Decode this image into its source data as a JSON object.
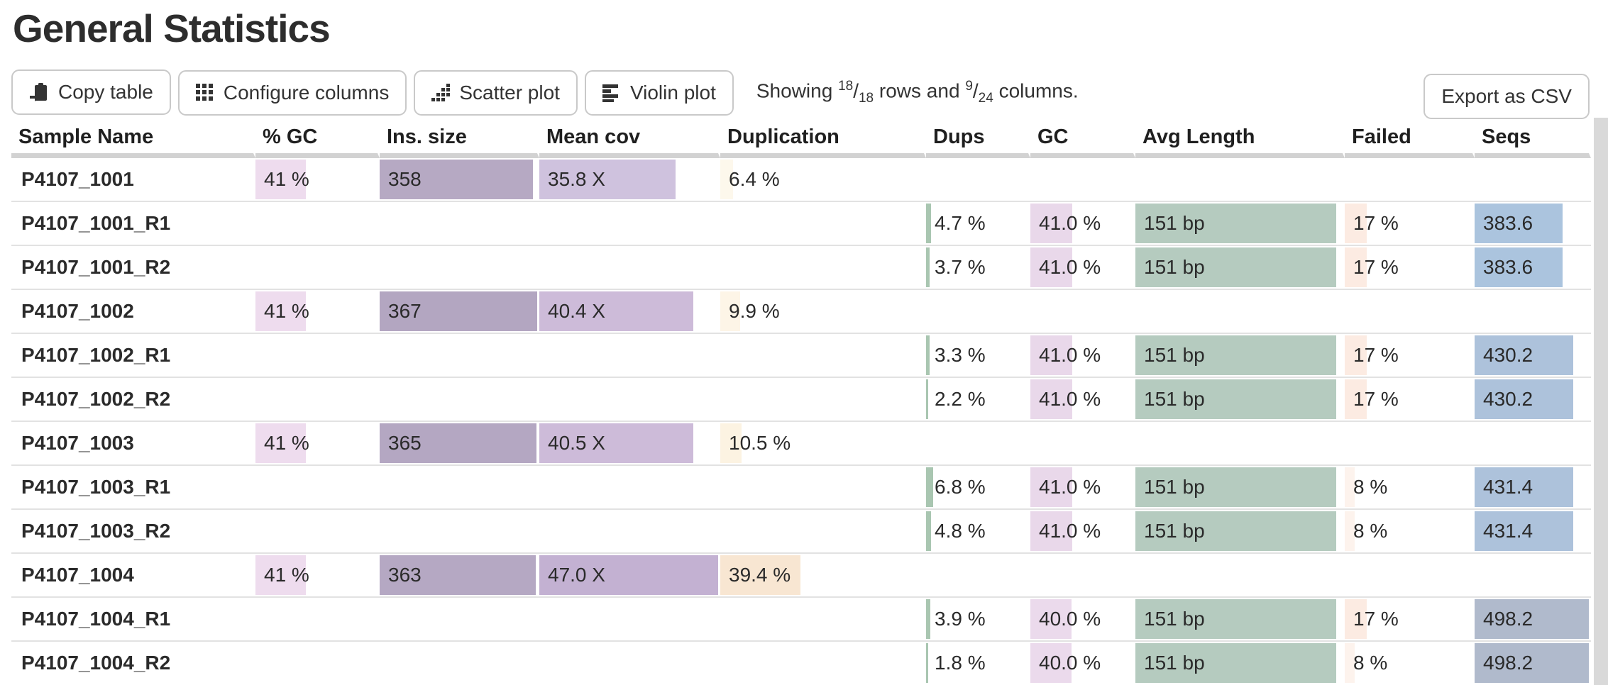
{
  "page": {
    "title": "General Statistics"
  },
  "toolbar": {
    "buttons": [
      {
        "label": "Copy table",
        "icon": "clipboard-icon"
      },
      {
        "label": "Configure columns",
        "icon": "grid-icon"
      },
      {
        "label": "Scatter plot",
        "icon": "scatter-icon"
      },
      {
        "label": "Violin plot",
        "icon": "violin-icon"
      }
    ],
    "showing": {
      "prefix": "Showing",
      "rows_visible": "18",
      "rows_total": "18",
      "mid": "rows and",
      "cols_visible": "9",
      "cols_total": "24",
      "suffix": "columns."
    },
    "export_label": "Export as CSV"
  },
  "table": {
    "columns": [
      {
        "key": "sample_name",
        "label": "Sample Name"
      },
      {
        "key": "pct_gc",
        "label": "% GC"
      },
      {
        "key": "ins_size",
        "label": "Ins. size"
      },
      {
        "key": "mean_cov",
        "label": "Mean cov"
      },
      {
        "key": "duplication",
        "label": "Duplication"
      },
      {
        "key": "dups",
        "label": "Dups"
      },
      {
        "key": "gc",
        "label": "GC"
      },
      {
        "key": "avg_length",
        "label": "Avg Length"
      },
      {
        "key": "failed",
        "label": "Failed"
      },
      {
        "key": "seqs",
        "label": "Seqs"
      }
    ],
    "rows": [
      {
        "name": "P4107_1001",
        "cells": {
          "pct_gc": {
            "text": "41 %",
            "bar": 41,
            "color": "#eedcee"
          },
          "ins_size": {
            "text": "358",
            "bar": 97.5,
            "color": "#b6a9c3"
          },
          "mean_cov": {
            "text": "35.8 X",
            "bar": 76,
            "color": "#cfc2de"
          },
          "duplication": {
            "text": "6.4 %",
            "bar": 6.4,
            "color": "#fdf8ec"
          }
        }
      },
      {
        "name": "P4107_1001_R1",
        "cells": {
          "dups": {
            "text": "4.7 %",
            "bar": 4.7,
            "color": "#a9c6b1"
          },
          "gc": {
            "text": "41.0 %",
            "bar": 41,
            "color": "#e9d8ea"
          },
          "avg_length": {
            "text": "151 bp",
            "bar": 97,
            "color": "#b5cbbf"
          },
          "failed": {
            "text": "17 %",
            "bar": 17,
            "color": "#fcebe2"
          },
          "seqs": {
            "text": "383.6",
            "bar": 77,
            "color": "#abc4de"
          }
        }
      },
      {
        "name": "P4107_1001_R2",
        "cells": {
          "dups": {
            "text": "3.7 %",
            "bar": 3.7,
            "color": "#a9c6b1"
          },
          "gc": {
            "text": "41.0 %",
            "bar": 41,
            "color": "#e9d8ea"
          },
          "avg_length": {
            "text": "151 bp",
            "bar": 97,
            "color": "#b5cbbf"
          },
          "failed": {
            "text": "17 %",
            "bar": 17,
            "color": "#fcebe2"
          },
          "seqs": {
            "text": "383.6",
            "bar": 77,
            "color": "#abc4de"
          }
        }
      },
      {
        "name": "P4107_1002",
        "cells": {
          "pct_gc": {
            "text": "41 %",
            "bar": 41,
            "color": "#eedcee"
          },
          "ins_size": {
            "text": "367",
            "bar": 100,
            "color": "#b3a6c1"
          },
          "mean_cov": {
            "text": "40.4 X",
            "bar": 86,
            "color": "#cdbbd9"
          },
          "duplication": {
            "text": "9.9 %",
            "bar": 9.9,
            "color": "#fdf5e7"
          }
        }
      },
      {
        "name": "P4107_1002_R1",
        "cells": {
          "dups": {
            "text": "3.3 %",
            "bar": 3.3,
            "color": "#a9c6b1"
          },
          "gc": {
            "text": "41.0 %",
            "bar": 41,
            "color": "#e9d8ea"
          },
          "avg_length": {
            "text": "151 bp",
            "bar": 97,
            "color": "#b5cbbf"
          },
          "failed": {
            "text": "17 %",
            "bar": 17,
            "color": "#fcebe2"
          },
          "seqs": {
            "text": "430.2",
            "bar": 86.3,
            "color": "#adc2db"
          }
        }
      },
      {
        "name": "P4107_1002_R2",
        "cells": {
          "dups": {
            "text": "2.2 %",
            "bar": 2.2,
            "color": "#a9c6b1"
          },
          "gc": {
            "text": "41.0 %",
            "bar": 41,
            "color": "#e9d8ea"
          },
          "avg_length": {
            "text": "151 bp",
            "bar": 97,
            "color": "#b5cbbf"
          },
          "failed": {
            "text": "17 %",
            "bar": 17,
            "color": "#fcebe2"
          },
          "seqs": {
            "text": "430.2",
            "bar": 86.3,
            "color": "#adc2db"
          }
        }
      },
      {
        "name": "P4107_1003",
        "cells": {
          "pct_gc": {
            "text": "41 %",
            "bar": 41,
            "color": "#eedcee"
          },
          "ins_size": {
            "text": "365",
            "bar": 99.5,
            "color": "#b4a7c2"
          },
          "mean_cov": {
            "text": "40.5 X",
            "bar": 86,
            "color": "#cdbbd9"
          },
          "duplication": {
            "text": "10.5 %",
            "bar": 10.5,
            "color": "#fcf3e2"
          }
        }
      },
      {
        "name": "P4107_1003_R1",
        "cells": {
          "dups": {
            "text": "6.8 %",
            "bar": 6.8,
            "color": "#a9c6b1"
          },
          "gc": {
            "text": "41.0 %",
            "bar": 41,
            "color": "#e9d8ea"
          },
          "avg_length": {
            "text": "151 bp",
            "bar": 97,
            "color": "#b5cbbf"
          },
          "failed": {
            "text": "8 %",
            "bar": 8,
            "color": "#fdf3ed"
          },
          "seqs": {
            "text": "431.4",
            "bar": 86.6,
            "color": "#adc2db"
          }
        }
      },
      {
        "name": "P4107_1003_R2",
        "cells": {
          "dups": {
            "text": "4.8 %",
            "bar": 4.8,
            "color": "#a9c6b1"
          },
          "gc": {
            "text": "41.0 %",
            "bar": 41,
            "color": "#e9d8ea"
          },
          "avg_length": {
            "text": "151 bp",
            "bar": 97,
            "color": "#b5cbbf"
          },
          "failed": {
            "text": "8 %",
            "bar": 8,
            "color": "#fdf3ed"
          },
          "seqs": {
            "text": "431.4",
            "bar": 86.6,
            "color": "#adc2db"
          }
        }
      },
      {
        "name": "P4107_1004",
        "cells": {
          "pct_gc": {
            "text": "41 %",
            "bar": 41,
            "color": "#eedcee"
          },
          "ins_size": {
            "text": "363",
            "bar": 98.9,
            "color": "#b5a8c3"
          },
          "mean_cov": {
            "text": "47.0 X",
            "bar": 100,
            "color": "#c3b1d2"
          },
          "duplication": {
            "text": "39.4 %",
            "bar": 39.4,
            "color": "#f8e6d2"
          }
        }
      },
      {
        "name": "P4107_1004_R1",
        "cells": {
          "dups": {
            "text": "3.9 %",
            "bar": 3.9,
            "color": "#a9c6b1"
          },
          "gc": {
            "text": "40.0 %",
            "bar": 40,
            "color": "#ebdaec"
          },
          "avg_length": {
            "text": "151 bp",
            "bar": 97,
            "color": "#b5cbbf"
          },
          "failed": {
            "text": "17 %",
            "bar": 17,
            "color": "#fcebe2"
          },
          "seqs": {
            "text": "498.2",
            "bar": 100,
            "color": "#b0bacc"
          }
        }
      },
      {
        "name": "P4107_1004_R2",
        "cells": {
          "dups": {
            "text": "1.8 %",
            "bar": 1.8,
            "color": "#a9c6b1"
          },
          "gc": {
            "text": "40.0 %",
            "bar": 40,
            "color": "#ebdaec"
          },
          "avg_length": {
            "text": "151 bp",
            "bar": 97,
            "color": "#b5cbbf"
          },
          "failed": {
            "text": "8 %",
            "bar": 8,
            "color": "#fdf3ed"
          },
          "seqs": {
            "text": "498.2",
            "bar": 100,
            "color": "#b0bacc"
          }
        }
      }
    ]
  },
  "scrollbar_color": "#d9d9d9"
}
